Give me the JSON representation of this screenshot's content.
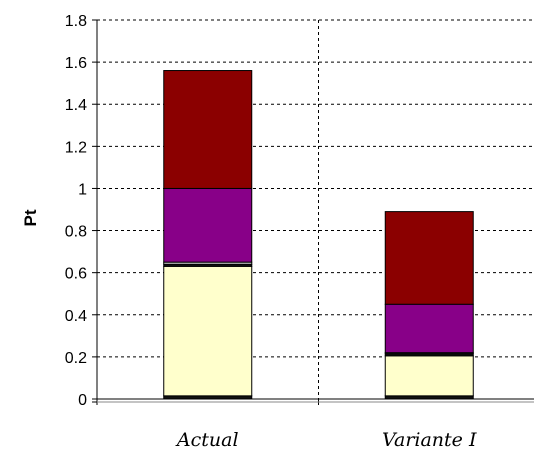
{
  "chart_data": {
    "type": "bar",
    "stacked": true,
    "title": "",
    "xlabel": "",
    "ylabel": "Pt",
    "ylim": [
      0,
      1.8
    ],
    "yticks": [
      "0",
      "0.2",
      "0.4",
      "0.6",
      "0.8",
      "1",
      "1.2",
      "1.4",
      "1.6",
      "1.8"
    ],
    "grid": true,
    "categories": [
      "Actual",
      "Variante I"
    ],
    "series": [
      {
        "color": "#111111",
        "values": [
          0.015,
          0.015
        ]
      },
      {
        "color": "#ffffcc",
        "values": [
          0.615,
          0.19
        ]
      },
      {
        "color": "#111111",
        "values": [
          0.01,
          0.01
        ]
      },
      {
        "color": "#d9d9d9",
        "values": [
          0.01,
          0.005
        ]
      },
      {
        "color": "#880088",
        "values": [
          0.35,
          0.23
        ]
      },
      {
        "color": "#8b0000",
        "values": [
          0.56,
          0.44
        ]
      }
    ]
  }
}
